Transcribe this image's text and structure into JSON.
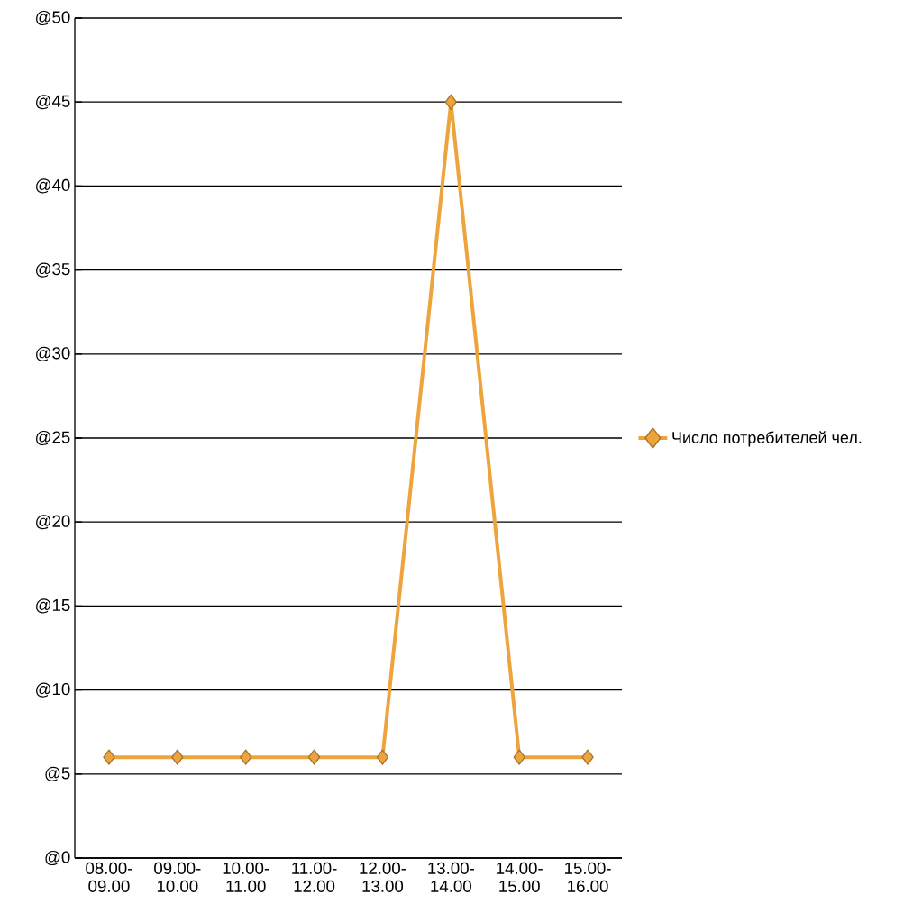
{
  "chart_data": {
    "type": "line",
    "categories": [
      "08.00-09.00",
      "09.00-10.00",
      "10.00-11.00",
      "11.00-12.00",
      "12.00-13.00",
      "13.00-14.00",
      "14.00-15.00",
      "15.00-16.00"
    ],
    "series": [
      {
        "name": "Число потребителей чел.",
        "color": "#eea43c",
        "values": [
          6,
          6,
          6,
          6,
          6,
          45,
          6,
          6
        ]
      }
    ],
    "ylim": [
      0,
      50
    ],
    "yticks": [
      {
        "value": 0,
        "label": "@0"
      },
      {
        "value": 5,
        "label": "@5"
      },
      {
        "value": 10,
        "label": "@10"
      },
      {
        "value": 15,
        "label": "@15"
      },
      {
        "value": 20,
        "label": "@20"
      },
      {
        "value": 25,
        "label": "@25"
      },
      {
        "value": 30,
        "label": "@30"
      },
      {
        "value": 35,
        "label": "@35"
      },
      {
        "value": 40,
        "label": "@40"
      },
      {
        "value": 45,
        "label": "@45"
      },
      {
        "value": 50,
        "label": "@50"
      }
    ],
    "grid": "y",
    "legend": "right",
    "marker": "diamond",
    "line_style": "solid"
  }
}
